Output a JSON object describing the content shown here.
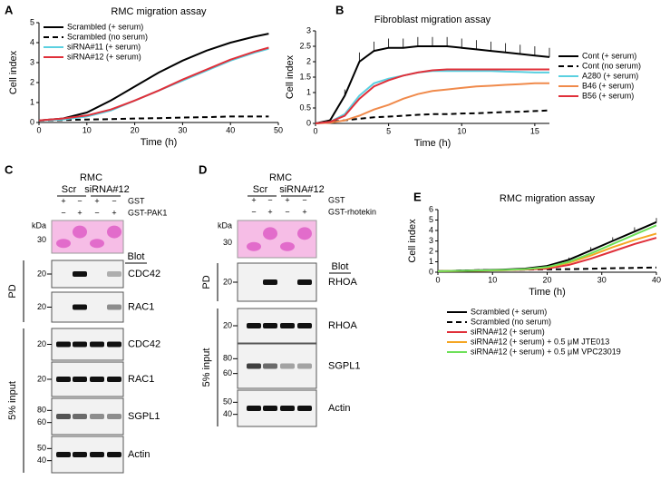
{
  "chart_data": [
    {
      "type": "line",
      "panel_label": "A",
      "title": "RMC migration assay",
      "x_label": "Time (h)",
      "y_label": "Cell index",
      "x": [
        0,
        5,
        10,
        15,
        20,
        25,
        30,
        35,
        40,
        45,
        48
      ],
      "xlim": [
        0,
        50
      ],
      "xticks": [
        0,
        10,
        20,
        30,
        40,
        50
      ],
      "ylim": [
        0,
        5
      ],
      "yticks": [
        0,
        1,
        2,
        3,
        4,
        5
      ],
      "legend": "upper left",
      "series": [
        {
          "name": "Scrambled (+ serum)",
          "color": "#000000",
          "line_style": "solid",
          "values": [
            0.1,
            0.2,
            0.5,
            1.1,
            1.8,
            2.5,
            3.1,
            3.6,
            4.0,
            4.3,
            4.45
          ]
        },
        {
          "name": "Scrambled (no serum)",
          "color": "#000000",
          "line_style": "dashed",
          "values": [
            0.1,
            0.12,
            0.15,
            0.17,
            0.2,
            0.22,
            0.25,
            0.27,
            0.3,
            0.3,
            0.3
          ]
        },
        {
          "name": "siRNA#11 (+ serum)",
          "color": "#5bd0e0",
          "line_style": "solid",
          "values": [
            0.1,
            0.15,
            0.3,
            0.6,
            1.1,
            1.6,
            2.1,
            2.6,
            3.1,
            3.5,
            3.7
          ]
        },
        {
          "name": "siRNA#12 (+ serum)",
          "color": "#e0303a",
          "line_style": "solid",
          "values": [
            0.1,
            0.2,
            0.35,
            0.65,
            1.1,
            1.6,
            2.15,
            2.65,
            3.15,
            3.55,
            3.75
          ]
        }
      ]
    },
    {
      "type": "line",
      "panel_label": "B",
      "title": "Fibroblast migration assay",
      "x_label": "Time (h)",
      "y_label": "Cell index",
      "x": [
        0,
        1,
        2,
        3,
        4,
        5,
        6,
        7,
        8,
        9,
        10,
        11,
        12,
        13,
        14,
        15,
        16
      ],
      "xlim": [
        0,
        16
      ],
      "xticks": [
        0,
        5,
        10,
        15
      ],
      "ylim": [
        0,
        3
      ],
      "yticks": [
        0,
        0.5,
        1,
        1.5,
        2,
        2.5,
        3
      ],
      "legend": "right",
      "series": [
        {
          "name": "Cont (+ serum)",
          "color": "#000000",
          "line_style": "solid",
          "values": [
            0,
            0.1,
            0.9,
            2.0,
            2.35,
            2.45,
            2.45,
            2.5,
            2.5,
            2.5,
            2.45,
            2.4,
            2.35,
            2.3,
            2.25,
            2.2,
            2.15
          ],
          "errors": [
            0,
            0.05,
            0.2,
            0.3,
            0.3,
            0.3,
            0.3,
            0.3,
            0.3,
            0.3,
            0.3,
            0.3,
            0.3,
            0.3,
            0.3,
            0.3,
            0.3
          ]
        },
        {
          "name": "Cont (no serum)",
          "color": "#000000",
          "line_style": "dashed",
          "values": [
            0,
            0.05,
            0.1,
            0.15,
            0.2,
            0.22,
            0.25,
            0.28,
            0.3,
            0.3,
            0.32,
            0.33,
            0.35,
            0.37,
            0.38,
            0.4,
            0.42
          ]
        },
        {
          "name": "A280 (+ serum)",
          "color": "#5bd0e0",
          "line_style": "solid",
          "values": [
            0,
            0.05,
            0.3,
            0.9,
            1.3,
            1.45,
            1.55,
            1.65,
            1.7,
            1.7,
            1.7,
            1.7,
            1.7,
            1.68,
            1.67,
            1.65,
            1.65
          ]
        },
        {
          "name": "B46 (+ serum)",
          "color": "#f08a4b",
          "line_style": "solid",
          "values": [
            0,
            0.02,
            0.1,
            0.25,
            0.45,
            0.6,
            0.8,
            0.95,
            1.05,
            1.1,
            1.15,
            1.2,
            1.22,
            1.25,
            1.27,
            1.3,
            1.3
          ]
        },
        {
          "name": "B56 (+ serum)",
          "color": "#e0303a",
          "line_style": "solid",
          "values": [
            0,
            0.05,
            0.25,
            0.8,
            1.2,
            1.4,
            1.55,
            1.65,
            1.72,
            1.75,
            1.75,
            1.75,
            1.75,
            1.75,
            1.75,
            1.75,
            1.75
          ]
        }
      ]
    },
    {
      "type": "line",
      "panel_label": "E",
      "title": "RMC migration assay",
      "x_label": "Time (h)",
      "y_label": "Cell index",
      "x": [
        0,
        4,
        8,
        12,
        16,
        20,
        24,
        28,
        32,
        36,
        40
      ],
      "xlim": [
        0,
        40
      ],
      "xticks": [
        0,
        10,
        20,
        30,
        40
      ],
      "ylim": [
        0,
        6
      ],
      "yticks": [
        0,
        1,
        2,
        3,
        4,
        5,
        6
      ],
      "legend": "below",
      "series": [
        {
          "name": "Scrambled (+ serum)",
          "color": "#000000",
          "line_style": "solid",
          "values": [
            0.1,
            0.15,
            0.2,
            0.25,
            0.35,
            0.6,
            1.2,
            2.1,
            3.0,
            3.9,
            4.8
          ],
          "errors": [
            0,
            0,
            0,
            0.05,
            0.05,
            0.1,
            0.2,
            0.3,
            0.35,
            0.4,
            0.4
          ]
        },
        {
          "name": "Scrambled (no serum)",
          "color": "#000000",
          "line_style": "dashed",
          "values": [
            0.1,
            0.15,
            0.2,
            0.22,
            0.25,
            0.27,
            0.3,
            0.33,
            0.38,
            0.42,
            0.45
          ]
        },
        {
          "name": "siRNA#12 (+ serum)",
          "color": "#e0303a",
          "line_style": "solid",
          "values": [
            0.1,
            0.12,
            0.15,
            0.2,
            0.25,
            0.35,
            0.7,
            1.3,
            2.0,
            2.7,
            3.3
          ]
        },
        {
          "name": "siRNA#12 (+ serum) + 0.5 μM JTE013",
          "color": "#f5a623",
          "line_style": "solid",
          "values": [
            0.1,
            0.12,
            0.15,
            0.2,
            0.28,
            0.45,
            0.9,
            1.6,
            2.4,
            3.1,
            3.7
          ]
        },
        {
          "name": "siRNA#12 (+ serum) + 0.5 μM VPC23019",
          "color": "#6ee05a",
          "line_style": "solid",
          "values": [
            0.1,
            0.13,
            0.17,
            0.22,
            0.3,
            0.5,
            1.0,
            1.8,
            2.7,
            3.6,
            4.5
          ]
        }
      ]
    }
  ],
  "blots": [
    {
      "panel_label": "C",
      "cell_line": "RMC",
      "groups": [
        "Scr",
        "siRNA#12"
      ],
      "treatments": [
        {
          "label": "GST",
          "signs": [
            "+",
            "−",
            "+",
            "−"
          ]
        },
        {
          "label": "GST-PAK1",
          "signs": [
            "−",
            "+",
            "−",
            "+"
          ]
        }
      ],
      "stain": {
        "unit": "kDa",
        "markers": [
          30
        ]
      },
      "blot_header": "Blot",
      "sections": [
        {
          "label": "PD",
          "rows": [
            {
              "name": "CDC42",
              "markers": [
                20
              ]
            },
            {
              "name": "RAC1",
              "markers": [
                20
              ]
            }
          ]
        },
        {
          "label": "5% input",
          "rows": [
            {
              "name": "CDC42",
              "markers": [
                20
              ]
            },
            {
              "name": "RAC1",
              "markers": [
                20
              ]
            },
            {
              "name": "SGPL1",
              "markers": [
                80,
                60
              ]
            },
            {
              "name": "Actin",
              "markers": [
                50,
                40
              ]
            }
          ]
        }
      ]
    },
    {
      "panel_label": "D",
      "cell_line": "RMC",
      "groups": [
        "Scr",
        "siRNA#12"
      ],
      "treatments": [
        {
          "label": "GST",
          "signs": [
            "+",
            "−",
            "+",
            "−"
          ]
        },
        {
          "label": "GST-rhotekin",
          "signs": [
            "−",
            "+",
            "−",
            "+"
          ]
        }
      ],
      "stain": {
        "unit": "kDa",
        "markers": [
          30
        ]
      },
      "blot_header": "Blot",
      "sections": [
        {
          "label": "PD",
          "rows": [
            {
              "name": "RHOA",
              "markers": [
                20
              ]
            }
          ]
        },
        {
          "label": "5% input",
          "rows": [
            {
              "name": "RHOA",
              "markers": [
                20
              ]
            },
            {
              "name": "SGPL1",
              "markers": [
                80,
                60
              ]
            },
            {
              "name": "Actin",
              "markers": [
                50,
                40
              ]
            }
          ]
        }
      ]
    }
  ]
}
